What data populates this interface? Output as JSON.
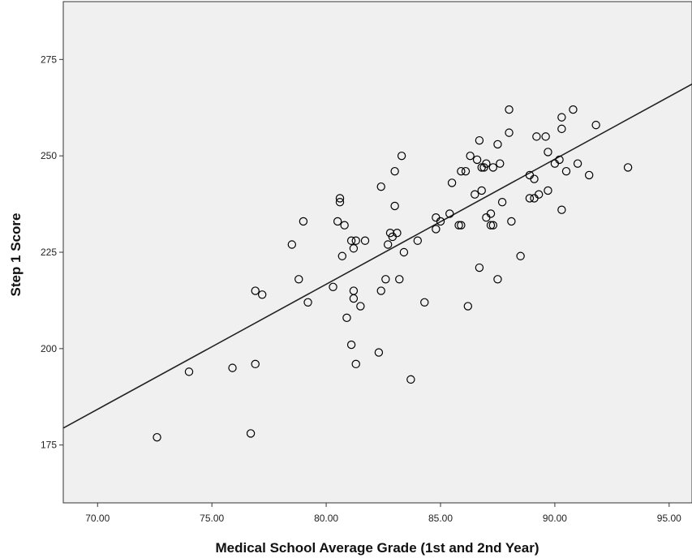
{
  "chart_data": {
    "type": "scatter",
    "title": "",
    "xlabel": "Medical School Average Grade (1st and 2nd Year)",
    "ylabel": "Step 1 Score",
    "xlim": [
      68.5,
      96.0
    ],
    "ylim": [
      160,
      290
    ],
    "x_ticks": [
      "70.00",
      "75.00",
      "80.00",
      "85.00",
      "90.00",
      "95.00"
    ],
    "y_ticks": [
      "175",
      "200",
      "225",
      "250",
      "275"
    ],
    "grid": false,
    "legend": "none",
    "plot_background": "#f0f0f0",
    "marker_color": "#000000",
    "fit_line": {
      "type": "linear",
      "x": [
        68.5,
        96.0
      ],
      "y": [
        179.4,
        268.6
      ]
    },
    "points": [
      [
        72.6,
        177
      ],
      [
        74.0,
        194
      ],
      [
        75.9,
        195
      ],
      [
        76.7,
        178
      ],
      [
        76.9,
        196
      ],
      [
        76.9,
        215
      ],
      [
        77.2,
        214
      ],
      [
        78.5,
        227
      ],
      [
        78.8,
        218
      ],
      [
        79.0,
        233
      ],
      [
        79.2,
        212
      ],
      [
        80.3,
        216
      ],
      [
        80.5,
        233
      ],
      [
        80.6,
        238
      ],
      [
        80.6,
        239
      ],
      [
        80.7,
        224
      ],
      [
        80.8,
        232
      ],
      [
        80.9,
        208
      ],
      [
        81.1,
        201
      ],
      [
        81.1,
        228
      ],
      [
        81.2,
        226
      ],
      [
        81.2,
        213
      ],
      [
        81.2,
        215
      ],
      [
        81.3,
        228
      ],
      [
        81.3,
        196
      ],
      [
        81.5,
        211
      ],
      [
        81.7,
        228
      ],
      [
        82.3,
        199
      ],
      [
        82.4,
        215
      ],
      [
        82.4,
        242
      ],
      [
        82.6,
        218
      ],
      [
        82.7,
        227
      ],
      [
        82.8,
        230
      ],
      [
        82.9,
        229
      ],
      [
        83.0,
        237
      ],
      [
        83.0,
        246
      ],
      [
        83.1,
        230
      ],
      [
        83.2,
        218
      ],
      [
        83.3,
        250
      ],
      [
        83.4,
        225
      ],
      [
        83.7,
        192
      ],
      [
        84.0,
        228
      ],
      [
        84.3,
        212
      ],
      [
        84.8,
        231
      ],
      [
        84.8,
        234
      ],
      [
        85.0,
        233
      ],
      [
        85.4,
        235
      ],
      [
        85.5,
        243
      ],
      [
        85.8,
        232
      ],
      [
        85.9,
        246
      ],
      [
        85.9,
        232
      ],
      [
        86.1,
        246
      ],
      [
        86.2,
        211
      ],
      [
        86.3,
        250
      ],
      [
        86.5,
        240
      ],
      [
        86.6,
        249
      ],
      [
        86.7,
        221
      ],
      [
        86.7,
        254
      ],
      [
        86.8,
        241
      ],
      [
        86.8,
        247
      ],
      [
        86.9,
        247
      ],
      [
        87.0,
        248
      ],
      [
        87.0,
        234
      ],
      [
        87.2,
        235
      ],
      [
        87.2,
        232
      ],
      [
        87.3,
        232
      ],
      [
        87.3,
        247
      ],
      [
        87.5,
        253
      ],
      [
        87.5,
        218
      ],
      [
        87.6,
        248
      ],
      [
        87.7,
        238
      ],
      [
        88.0,
        256
      ],
      [
        88.0,
        262
      ],
      [
        88.1,
        233
      ],
      [
        88.5,
        224
      ],
      [
        88.9,
        239
      ],
      [
        88.9,
        245
      ],
      [
        89.1,
        244
      ],
      [
        89.1,
        239
      ],
      [
        89.2,
        255
      ],
      [
        89.3,
        240
      ],
      [
        89.6,
        255
      ],
      [
        89.7,
        241
      ],
      [
        89.7,
        251
      ],
      [
        90.0,
        248
      ],
      [
        90.2,
        249
      ],
      [
        90.3,
        257
      ],
      [
        90.3,
        260
      ],
      [
        90.3,
        236
      ],
      [
        90.5,
        246
      ],
      [
        90.8,
        262
      ],
      [
        91.0,
        248
      ],
      [
        91.5,
        245
      ],
      [
        91.8,
        258
      ],
      [
        93.2,
        247
      ]
    ]
  }
}
